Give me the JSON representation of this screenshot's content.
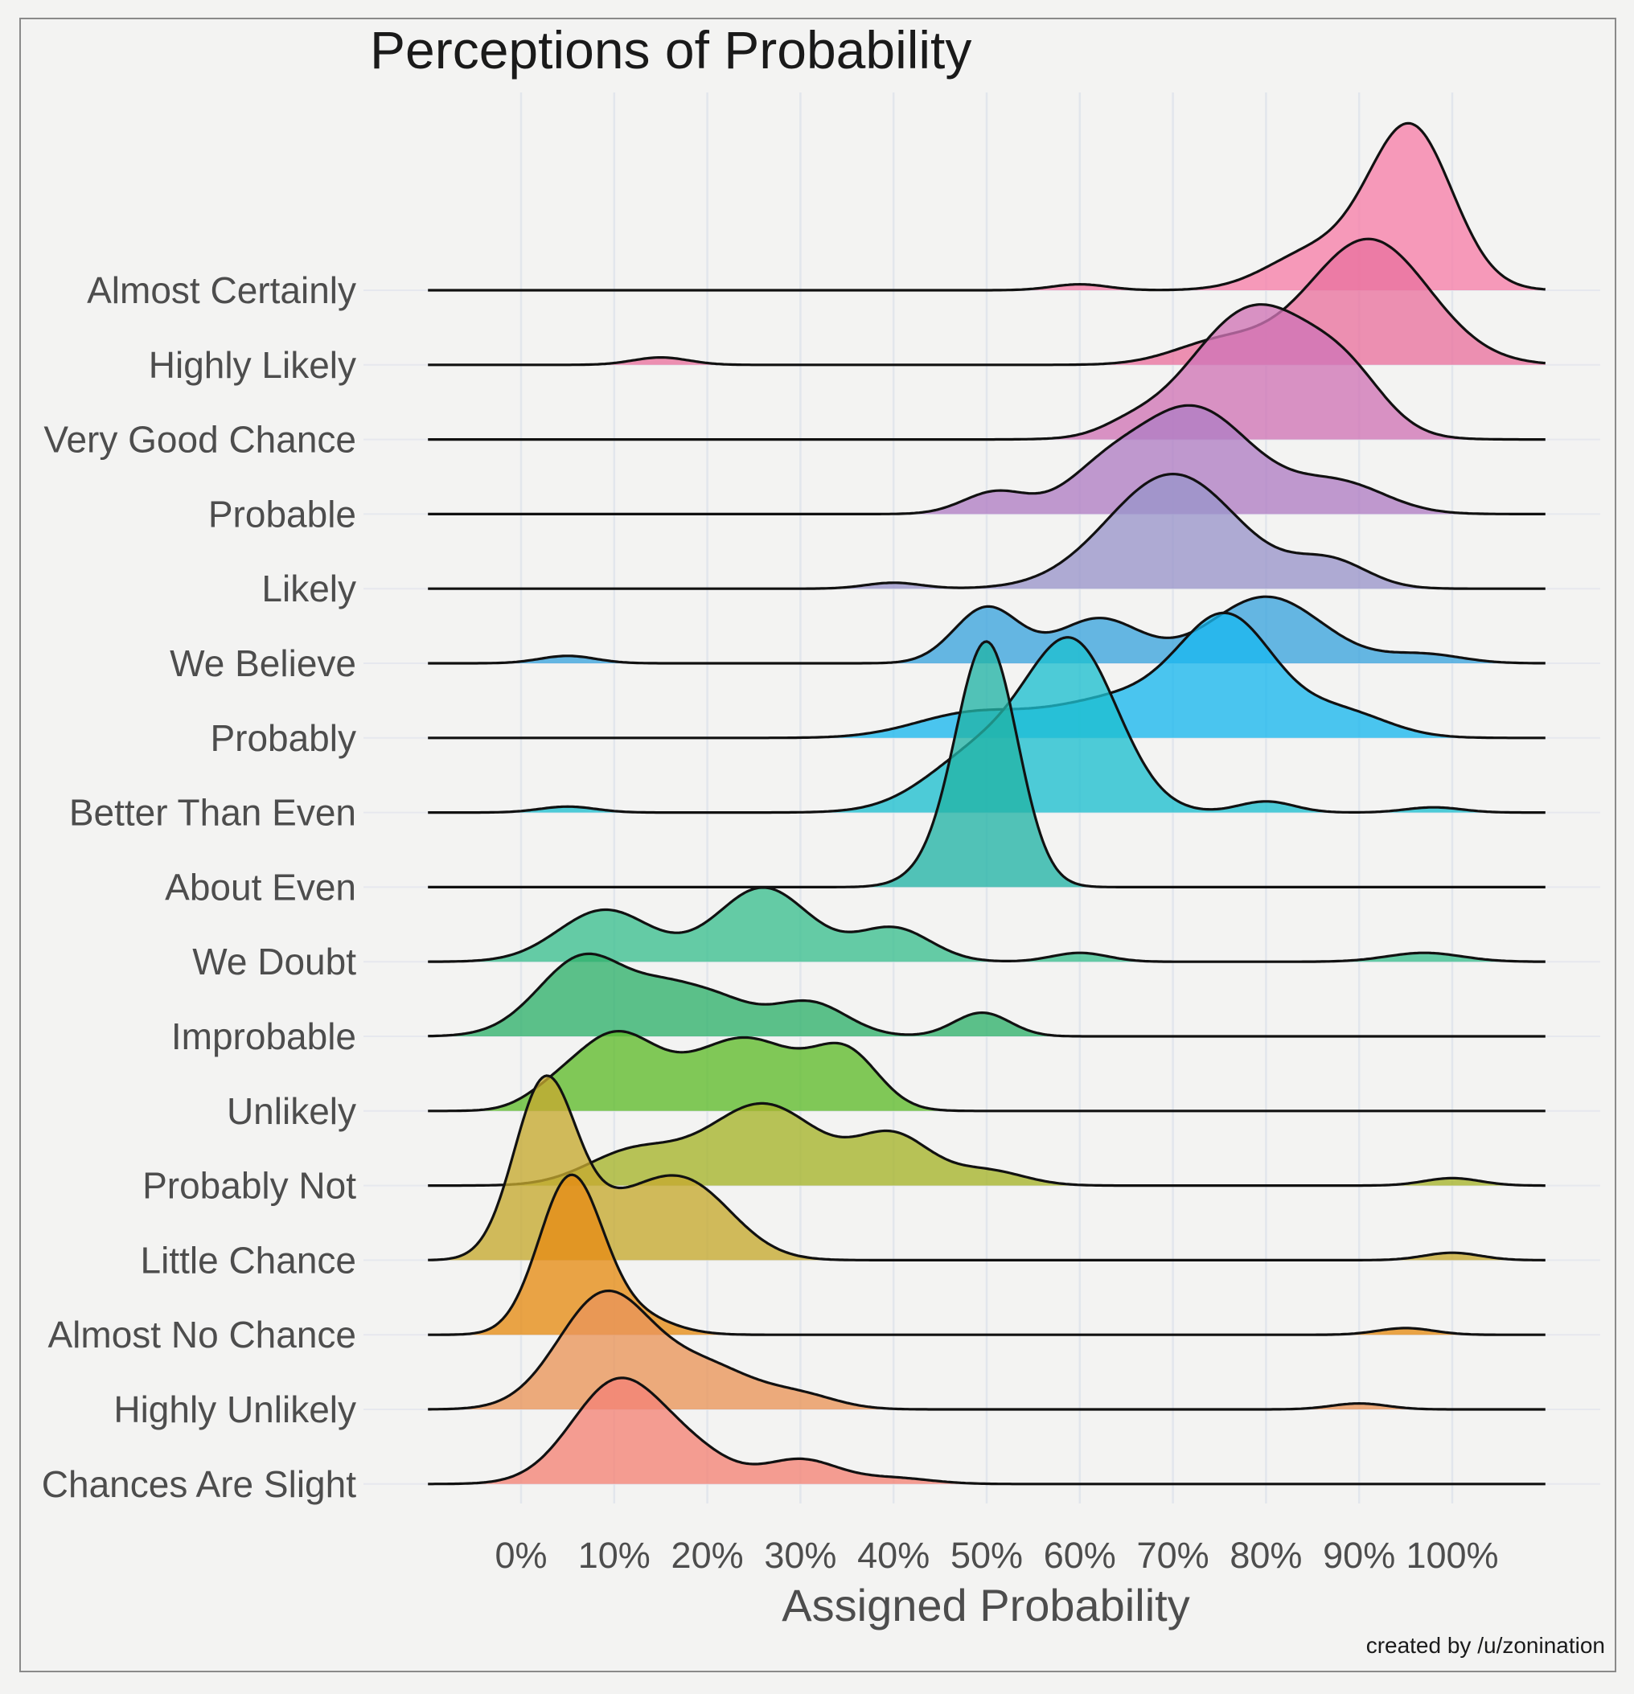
{
  "chart_data": {
    "type": "ridgeline",
    "title": "Perceptions of Probability",
    "xlabel": "Assigned Probability",
    "ylabel": "",
    "xlim": [
      -10,
      110
    ],
    "x_ticks": [
      0,
      10,
      20,
      30,
      40,
      50,
      60,
      70,
      80,
      90,
      100
    ],
    "x_tick_labels": [
      "0%",
      "10%",
      "20%",
      "30%",
      "40%",
      "50%",
      "60%",
      "70%",
      "80%",
      "90%",
      "100%"
    ],
    "credit": "created by /u/zonination",
    "grid": true,
    "legend": "none",
    "series": [
      {
        "name": "Almost Certainly",
        "color": "#f67fa9",
        "peaks": [
          [
            95.5,
            2.2,
            4.5
          ],
          [
            85,
            0.5,
            5
          ],
          [
            60,
            0.08,
            3
          ]
        ]
      },
      {
        "name": "Highly Likely",
        "color": "#e9729f",
        "peaks": [
          [
            91,
            1.7,
            6.5
          ],
          [
            75,
            0.3,
            5
          ],
          [
            15,
            0.1,
            3
          ]
        ]
      },
      {
        "name": "Very Good Chance",
        "color": "#cf74b6",
        "peaks": [
          [
            79,
            1.8,
            7
          ],
          [
            89,
            0.5,
            4
          ],
          [
            65,
            0.1,
            3
          ]
        ]
      },
      {
        "name": "Probable",
        "color": "#b07ec4",
        "peaks": [
          [
            72,
            1.45,
            6.5
          ],
          [
            51,
            0.3,
            3.5
          ],
          [
            62,
            0.35,
            4
          ],
          [
            88,
            0.4,
            5
          ]
        ]
      },
      {
        "name": "Likely",
        "color": "#9a95cb",
        "peaks": [
          [
            70,
            1.55,
            7
          ],
          [
            87,
            0.35,
            4
          ],
          [
            40,
            0.08,
            3
          ]
        ]
      },
      {
        "name": "We Believe",
        "color": "#3ba4de",
        "peaks": [
          [
            50,
            0.75,
            3.5
          ],
          [
            62,
            0.6,
            4.5
          ],
          [
            80,
            0.9,
            6
          ],
          [
            97,
            0.12,
            4
          ],
          [
            5,
            0.1,
            3
          ]
        ]
      },
      {
        "name": "Probably",
        "color": "#19b7ee",
        "peaks": [
          [
            76,
            1.45,
            5
          ],
          [
            65,
            0.55,
            8
          ],
          [
            48,
            0.3,
            6
          ],
          [
            88,
            0.35,
            5
          ]
        ]
      },
      {
        "name": "Better Than Even",
        "color": "#1ebfd0",
        "peaks": [
          [
            59.5,
            2.1,
            4.8
          ],
          [
            50,
            0.85,
            6
          ],
          [
            80,
            0.15,
            3
          ],
          [
            98,
            0.07,
            3
          ],
          [
            5,
            0.08,
            3
          ]
        ]
      },
      {
        "name": "About Even",
        "color": "#22b3a6",
        "peaks": [
          [
            50,
            3.3,
            3.3
          ],
          [
            44,
            0.15,
            3
          ]
        ]
      },
      {
        "name": "We Doubt",
        "color": "#3bbf90",
        "peaks": [
          [
            9,
            0.7,
            5
          ],
          [
            26,
            1.0,
            5
          ],
          [
            40,
            0.45,
            4
          ],
          [
            60,
            0.12,
            3
          ],
          [
            97,
            0.12,
            4
          ]
        ]
      },
      {
        "name": "Improbable",
        "color": "#2fb16b",
        "peaks": [
          [
            7,
            1.1,
            5
          ],
          [
            20,
            0.55,
            4.5
          ],
          [
            31,
            0.45,
            4
          ],
          [
            49.5,
            0.32,
            3
          ],
          [
            15,
            0.2,
            3
          ]
        ]
      },
      {
        "name": "Unlikely",
        "color": "#5fbb2b",
        "peaks": [
          [
            10,
            1.0,
            4.5
          ],
          [
            24,
            0.98,
            6
          ],
          [
            35,
            0.7,
            3.5
          ],
          [
            3,
            0.15,
            3
          ]
        ]
      },
      {
        "name": "Probably Not",
        "color": "#a5b42a",
        "peaks": [
          [
            26,
            1.1,
            6
          ],
          [
            40,
            0.65,
            4
          ],
          [
            12,
            0.45,
            5
          ],
          [
            50,
            0.2,
            4
          ],
          [
            100,
            0.1,
            3
          ]
        ]
      },
      {
        "name": "Little Chance",
        "color": "#c5a92f",
        "peaks": [
          [
            2.5,
            2.3,
            3.3
          ],
          [
            18,
            0.95,
            5
          ],
          [
            10,
            0.55,
            5
          ],
          [
            100,
            0.1,
            3
          ]
        ]
      },
      {
        "name": "Almost No Chance",
        "color": "#e58c14",
        "peaks": [
          [
            5.3,
            2.1,
            3.4
          ],
          [
            12,
            0.25,
            4
          ],
          [
            95,
            0.09,
            3
          ]
        ]
      },
      {
        "name": "Highly Unlikely",
        "color": "#e9955a",
        "peaks": [
          [
            9,
            1.55,
            5
          ],
          [
            20,
            0.55,
            5
          ],
          [
            30,
            0.18,
            4
          ],
          [
            90,
            0.08,
            3
          ]
        ]
      },
      {
        "name": "Chances Are Slight",
        "color": "#f38376",
        "peaks": [
          [
            10.5,
            1.4,
            5
          ],
          [
            30,
            0.33,
            4
          ],
          [
            19,
            0.3,
            4
          ],
          [
            40,
            0.08,
            4
          ]
        ]
      }
    ]
  }
}
